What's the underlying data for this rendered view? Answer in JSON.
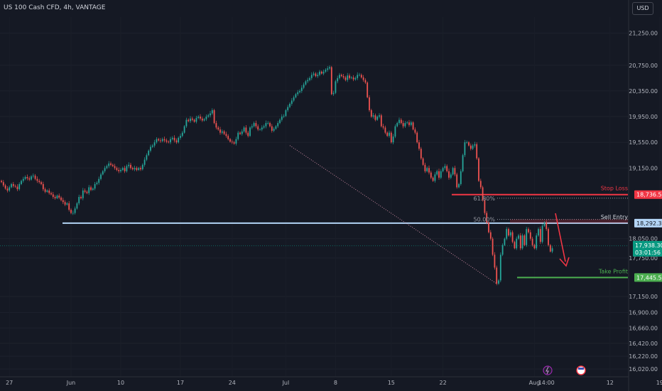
{
  "header": {
    "symbol_title": "US 100 Cash CFD, 4h, VANTAGE",
    "currency_button": "USD"
  },
  "chart_data": {
    "type": "candlestick",
    "instrument": "US 100 Cash CFD",
    "interval": "4h",
    "y_axis": {
      "ylim": [
        15900,
        21500
      ],
      "ticks": [
        "21,250.00",
        "20,750.00",
        "20,350.00",
        "19,950.00",
        "19,550.00",
        "19,150.00",
        "18,050.00",
        "17,750.00",
        "17,150.00",
        "16,900.00",
        "16,660.00",
        "16,420.00",
        "16,220.00",
        "16,020.00"
      ]
    },
    "x_axis": {
      "tick_labels": [
        "27",
        "Jun",
        "10",
        "17",
        "24",
        "Jul",
        "8",
        "15",
        "22",
        "Aug",
        "12",
        "19"
      ],
      "time_label": "14:00",
      "tick_indices": [
        4,
        35,
        60,
        90,
        116,
        143,
        168,
        196,
        222,
        268,
        306,
        331
      ]
    },
    "last_price": {
      "value": "17,938.30",
      "countdown": "03:01:56"
    },
    "price_tags": {
      "stop_loss": "18,736.57",
      "sell_entry": "18,292.33",
      "take_profit": "17,445.52"
    },
    "annotations": {
      "stop_loss_label": "Stop Loss",
      "sell_entry_label": "Sell Entry",
      "take_profit_label": "Take Profit",
      "fib_618": "61.80%",
      "fib_500": "50.00%"
    },
    "levels": {
      "stop_loss": 18736.57,
      "sell_entry": 18292.33,
      "take_profit": 17445.52,
      "fib_618": 18680,
      "fib_500": 18350,
      "support": 18292.33
    },
    "closes": [
      18930,
      18880,
      18830,
      18800,
      18850,
      18900,
      18870,
      18860,
      18820,
      18900,
      18950,
      18980,
      19010,
      18990,
      18970,
      19020,
      19030,
      18980,
      18950,
      18930,
      18900,
      18820,
      18780,
      18800,
      18760,
      18740,
      18700,
      18680,
      18720,
      18690,
      18650,
      18620,
      18580,
      18600,
      18500,
      18450,
      18450,
      18520,
      18600,
      18700,
      18680,
      18800,
      18780,
      18760,
      18850,
      18810,
      18830,
      18900,
      18920,
      18980,
      19050,
      19100,
      19150,
      19180,
      19220,
      19200,
      19180,
      19150,
      19120,
      19100,
      19120,
      19150,
      19100,
      19180,
      19200,
      19150,
      19130,
      19150,
      19120,
      19150,
      19130,
      19200,
      19280,
      19350,
      19420,
      19480,
      19500,
      19550,
      19600,
      19580,
      19570,
      19600,
      19580,
      19560,
      19550,
      19600,
      19620,
      19580,
      19550,
      19620,
      19650,
      19700,
      19800,
      19900,
      19880,
      19920,
      19900,
      19870,
      19930,
      19950,
      19920,
      19890,
      19910,
      19950,
      19970,
      20000,
      20050,
      19850,
      19780,
      19750,
      19700,
      19720,
      19680,
      19650,
      19600,
      19560,
      19550,
      19530,
      19600,
      19700,
      19680,
      19720,
      19780,
      19700,
      19650,
      19780,
      19800,
      19850,
      19800,
      19750,
      19750,
      19780,
      19800,
      19850,
      19850,
      19800,
      19730,
      19760,
      19800,
      19850,
      19900,
      19950,
      19960,
      20050,
      20100,
      20150,
      20200,
      20250,
      20300,
      20330,
      20350,
      20400,
      20450,
      20500,
      20520,
      20550,
      20600,
      20620,
      20580,
      20600,
      20650,
      20620,
      20650,
      20680,
      20700,
      20720,
      20300,
      20320,
      20500,
      20550,
      20600,
      20580,
      20560,
      20520,
      20590,
      20550,
      20560,
      20530,
      20550,
      20600,
      20600,
      20560,
      20520,
      20480,
      20250,
      20050,
      19950,
      19970,
      19900,
      19950,
      19970,
      19800,
      19780,
      19700,
      19650,
      19700,
      19550,
      19640,
      19800,
      19850,
      19900,
      19850,
      19800,
      19850,
      19860,
      19820,
      19860,
      19750,
      19700,
      19550,
      19450,
      19300,
      19200,
      19100,
      19150,
      19080,
      19000,
      18950,
      19050,
      19100,
      19000,
      19100,
      19150,
      19180,
      19100,
      19000,
      19050,
      19150,
      19050,
      18850,
      18900,
      19100,
      19350,
      19550,
      19550,
      19500,
      19450,
      19500,
      19520,
      19300,
      18950,
      18850,
      18650,
      18450,
      18300,
      18150,
      18050,
      17800,
      17600,
      17350,
      17400,
      17800,
      17950,
      18050,
      18200,
      18100,
      18150,
      18000,
      17900,
      18050,
      18100,
      17900,
      18100,
      17950,
      18200,
      18150,
      18050,
      17950,
      17900,
      18100,
      18200,
      18000,
      18250,
      18300,
      18200,
      17950,
      17850,
      17900
    ]
  }
}
